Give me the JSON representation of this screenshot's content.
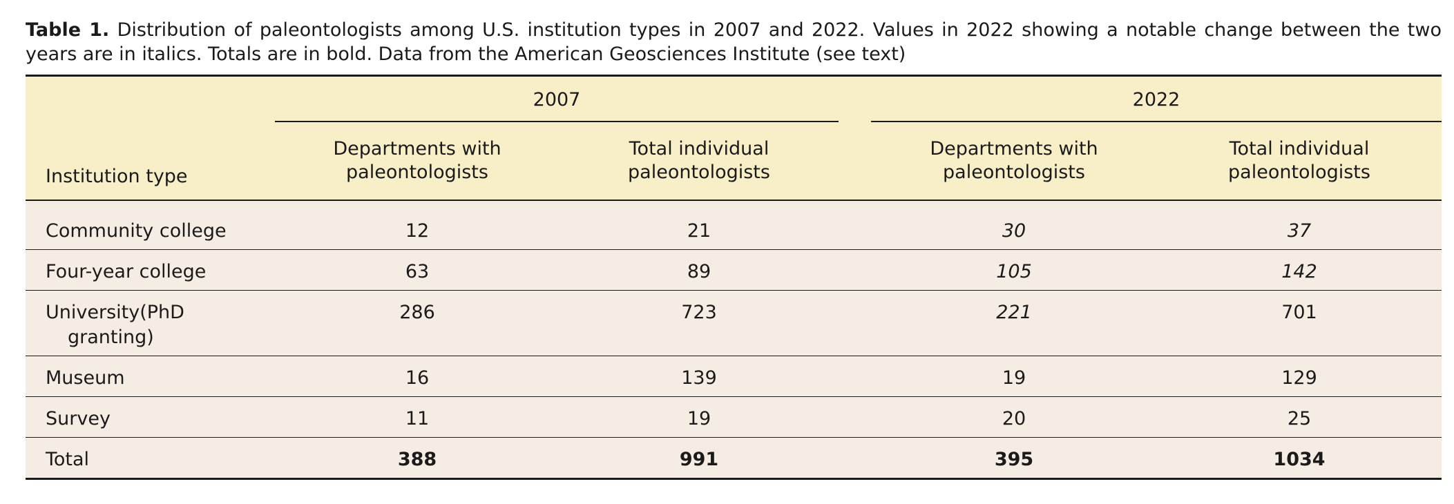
{
  "caption": {
    "label": "Table 1.",
    "text": " Distribution of paleontologists among U.S. institution types in 2007 and 2022. Values in 2022 showing a notable change between the two years are in italics. Totals are in bold. Data from the American Geosciences Institute (see text)"
  },
  "header": {
    "year_2007": "2007",
    "year_2022": "2022",
    "institution_type": "Institution type",
    "dept_line1": "Departments with",
    "dept_line2": "paleontologists",
    "total_line1": "Total individual",
    "total_line2": "paleontologists"
  },
  "rows": [
    {
      "inst": "Community college",
      "inst_cont": "",
      "d2007": "12",
      "t2007": "21",
      "d2022": "30",
      "t2022": "37"
    },
    {
      "inst": "Four-year college",
      "inst_cont": "",
      "d2007": "63",
      "t2007": "89",
      "d2022": "105",
      "t2022": "142"
    },
    {
      "inst": "University(PhD",
      "inst_cont": "granting)",
      "d2007": "286",
      "t2007": "723",
      "d2022": "221",
      "t2022": "701"
    },
    {
      "inst": "Museum",
      "inst_cont": "",
      "d2007": "16",
      "t2007": "139",
      "d2022": "19",
      "t2022": "129"
    },
    {
      "inst": "Survey",
      "inst_cont": "",
      "d2007": "11",
      "t2007": "19",
      "d2022": "20",
      "t2022": "25"
    },
    {
      "inst": "Total",
      "inst_cont": "",
      "d2007": "388",
      "t2007": "991",
      "d2022": "395",
      "t2022": "1034"
    }
  ],
  "colors": {
    "header_bg": "#f8efc9",
    "body_bg": "#f5ece4",
    "rule": "#1a1a1a"
  }
}
